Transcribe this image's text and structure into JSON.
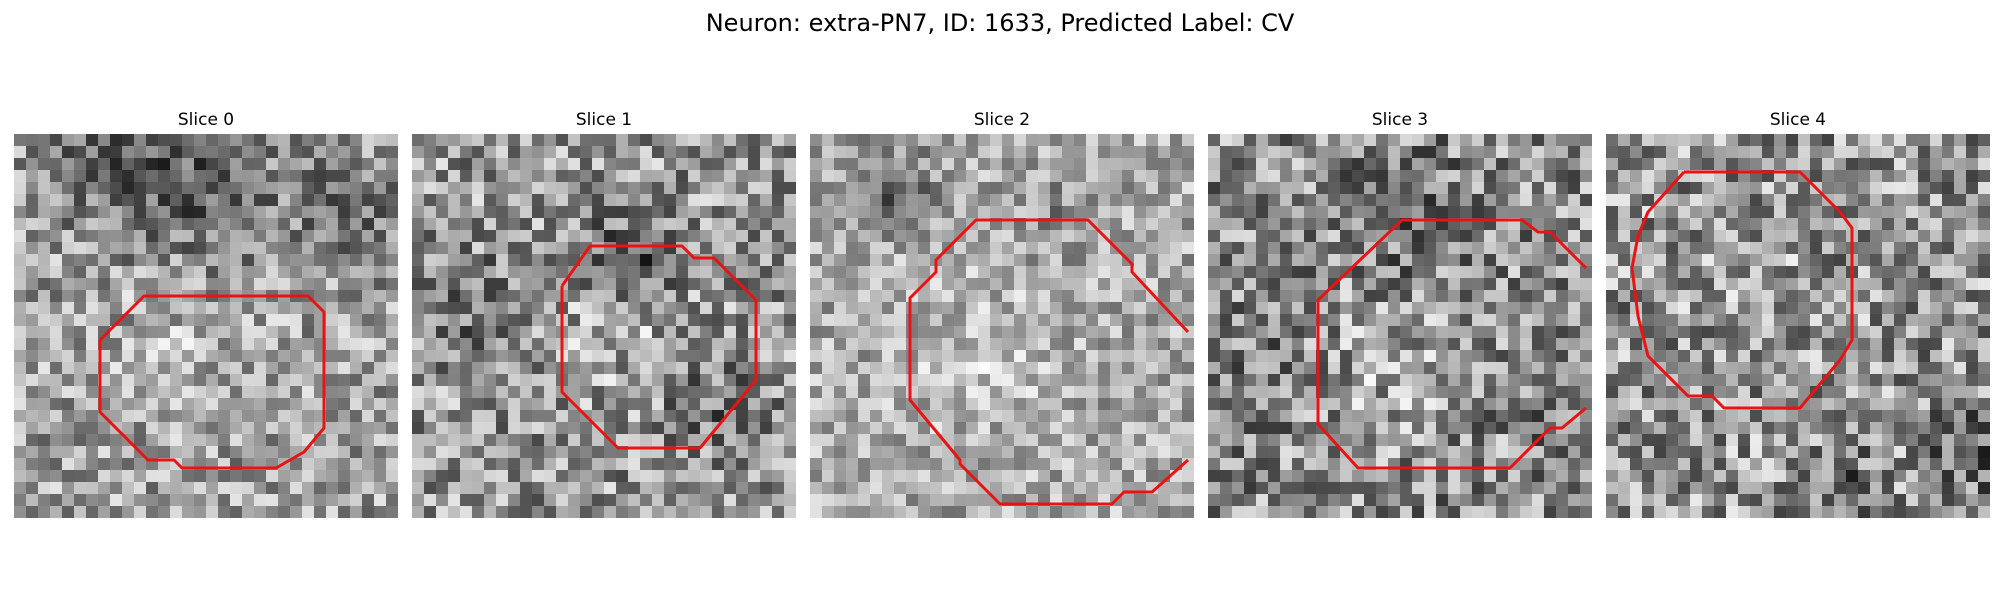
{
  "figure": {
    "title": "Neuron: extra-PN7, ID: 1633, Predicted Label: CV",
    "contour_color": "#e81414"
  },
  "panels": [
    {
      "label": "Slice 0"
    },
    {
      "label": "Slice 1"
    },
    {
      "label": "Slice 2"
    },
    {
      "label": "Slice 3"
    },
    {
      "label": "Slice 4"
    }
  ]
}
